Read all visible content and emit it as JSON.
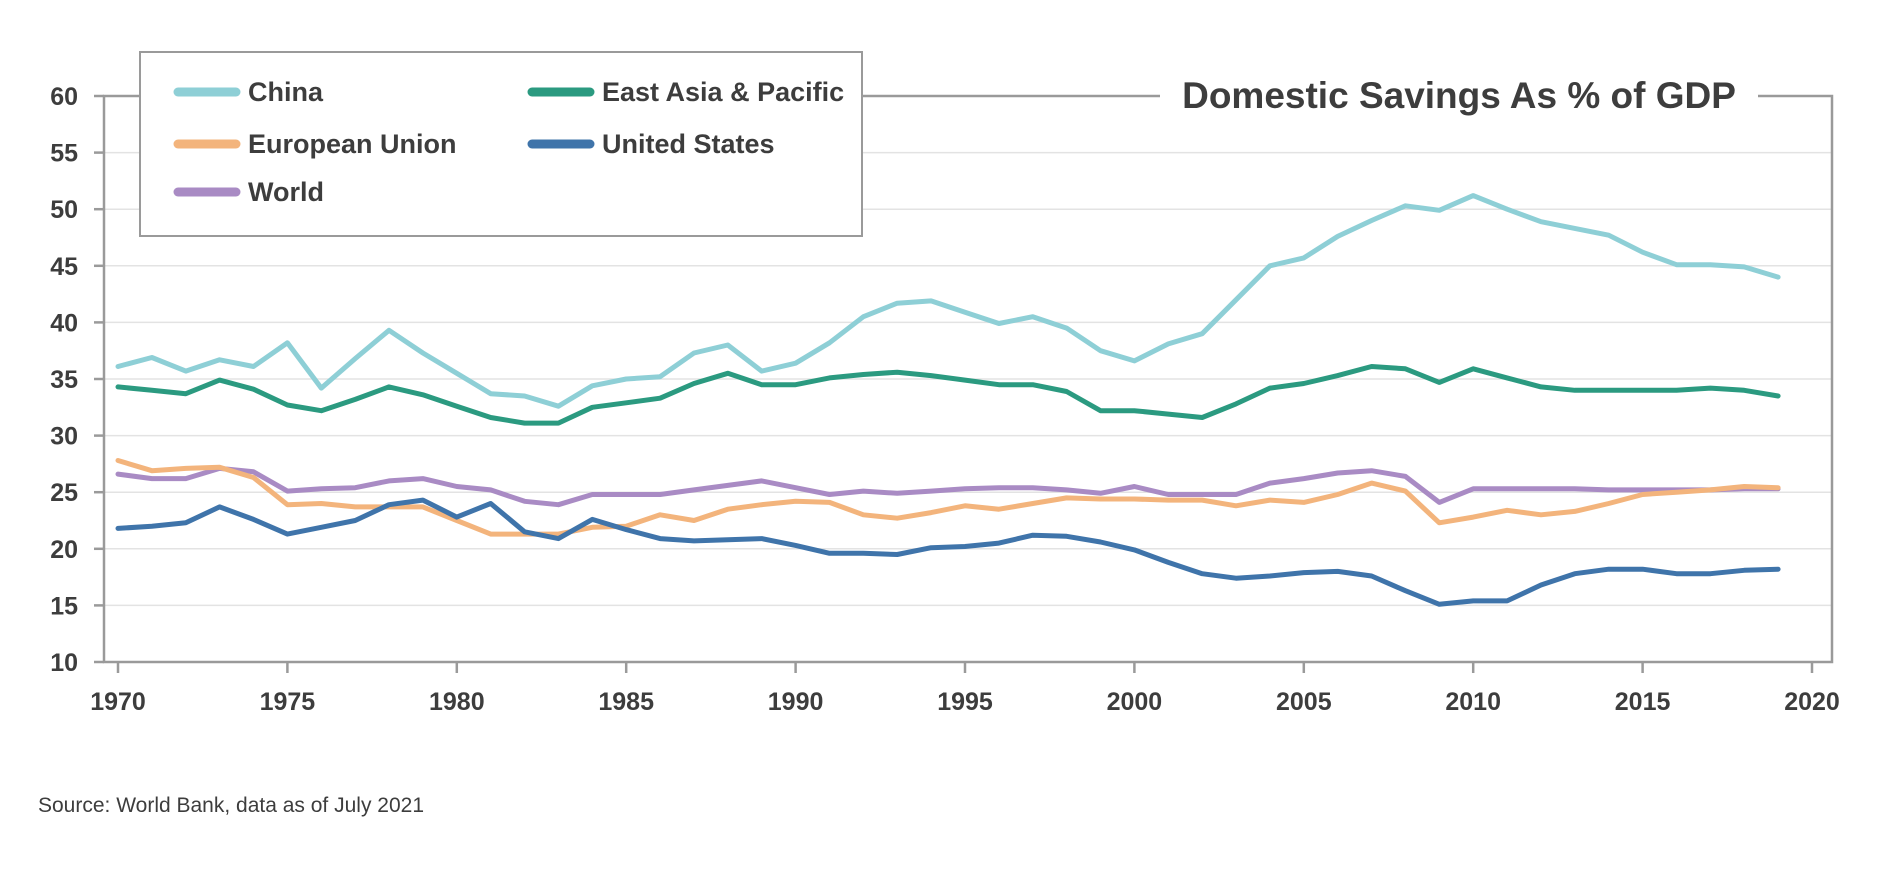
{
  "chart_data": {
    "type": "line",
    "title": "Domestic Savings As % of GDP",
    "source": "Source: World Bank, data as of July 2021",
    "xlim": [
      1970,
      2020
    ],
    "ylim": [
      10,
      60
    ],
    "x_ticks": [
      "1970",
      "1975",
      "1980",
      "1985",
      "1990",
      "1995",
      "2000",
      "2005",
      "2010",
      "2015",
      "2020"
    ],
    "y_ticks": [
      "10",
      "15",
      "20",
      "25",
      "30",
      "35",
      "40",
      "45",
      "50",
      "55",
      "60"
    ],
    "grid": "horizontal",
    "legend_position": "top-left",
    "x": [
      1970,
      1971,
      1972,
      1973,
      1974,
      1975,
      1976,
      1977,
      1978,
      1979,
      1980,
      1981,
      1982,
      1983,
      1984,
      1985,
      1986,
      1987,
      1988,
      1989,
      1990,
      1991,
      1992,
      1993,
      1994,
      1995,
      1996,
      1997,
      1998,
      1999,
      2000,
      2001,
      2002,
      2003,
      2004,
      2005,
      2006,
      2007,
      2008,
      2009,
      2010,
      2011,
      2012,
      2013,
      2014,
      2015,
      2016,
      2017,
      2018,
      2019
    ],
    "series": [
      {
        "name": "China",
        "color": "#8ecfd6",
        "values": [
          36.1,
          36.9,
          35.7,
          36.7,
          36.1,
          38.2,
          34.2,
          36.8,
          39.3,
          37.3,
          35.5,
          33.7,
          33.5,
          32.6,
          34.4,
          35.0,
          35.2,
          37.3,
          38.0,
          35.7,
          36.4,
          38.2,
          40.5,
          41.7,
          41.9,
          40.9,
          39.9,
          40.5,
          39.5,
          37.5,
          36.6,
          38.1,
          39.0,
          42.0,
          45.0,
          45.7,
          47.6,
          49.0,
          50.3,
          49.9,
          51.2,
          50.0,
          48.9,
          48.3,
          47.7,
          46.2,
          45.1,
          45.1,
          44.9,
          44.0
        ]
      },
      {
        "name": "East Asia & Pacific",
        "color": "#2b9a80",
        "values": [
          34.3,
          34.0,
          33.7,
          34.9,
          34.1,
          32.7,
          32.2,
          33.2,
          34.3,
          33.6,
          32.6,
          31.6,
          31.1,
          31.1,
          32.5,
          32.9,
          33.3,
          34.6,
          35.5,
          34.5,
          34.5,
          35.1,
          35.4,
          35.6,
          35.3,
          34.9,
          34.5,
          34.5,
          33.9,
          32.2,
          32.2,
          31.9,
          31.6,
          32.8,
          34.2,
          34.6,
          35.3,
          36.1,
          35.9,
          34.7,
          35.9,
          35.1,
          34.3,
          34.0,
          34.0,
          34.0,
          34.0,
          34.2,
          34.0,
          33.5
        ]
      },
      {
        "name": "European Union",
        "color": "#f3b47c",
        "values": [
          27.8,
          26.9,
          27.1,
          27.2,
          26.3,
          23.9,
          24.0,
          23.7,
          23.7,
          23.7,
          22.5,
          21.3,
          21.3,
          21.3,
          21.9,
          22.0,
          23.0,
          22.5,
          23.5,
          23.9,
          24.2,
          24.1,
          23.0,
          22.7,
          23.2,
          23.8,
          23.5,
          24.0,
          24.5,
          24.4,
          24.4,
          24.3,
          24.3,
          23.8,
          24.3,
          24.1,
          24.8,
          25.8,
          25.1,
          22.3,
          22.8,
          23.4,
          23.0,
          23.3,
          24.0,
          24.8,
          25.0,
          25.2,
          25.5,
          25.4
        ]
      },
      {
        "name": "United States",
        "color": "#3f74aa",
        "values": [
          21.8,
          22.0,
          22.3,
          23.7,
          22.6,
          21.3,
          21.9,
          22.5,
          23.9,
          24.3,
          22.8,
          24.0,
          21.5,
          20.9,
          22.6,
          21.7,
          20.9,
          20.7,
          20.8,
          20.9,
          20.3,
          19.6,
          19.6,
          19.5,
          20.1,
          20.2,
          20.5,
          21.2,
          21.1,
          20.6,
          19.9,
          18.8,
          17.8,
          17.4,
          17.6,
          17.9,
          18.0,
          17.6,
          16.3,
          15.1,
          15.4,
          15.4,
          16.8,
          17.8,
          18.2,
          18.2,
          17.8,
          17.8,
          18.1,
          18.2
        ]
      },
      {
        "name": "World",
        "color": "#a98bc4",
        "values": [
          26.6,
          26.2,
          26.2,
          27.1,
          26.8,
          25.1,
          25.3,
          25.4,
          26.0,
          26.2,
          25.5,
          25.2,
          24.2,
          23.9,
          24.8,
          24.8,
          24.8,
          25.2,
          25.6,
          26.0,
          25.4,
          24.8,
          25.1,
          24.9,
          25.1,
          25.3,
          25.4,
          25.4,
          25.2,
          24.9,
          25.5,
          24.8,
          24.8,
          24.8,
          25.8,
          26.2,
          26.7,
          26.9,
          26.4,
          24.1,
          25.3,
          25.3,
          25.3,
          25.3,
          25.2,
          25.2,
          25.2,
          25.2,
          25.3,
          25.3
        ]
      }
    ]
  }
}
